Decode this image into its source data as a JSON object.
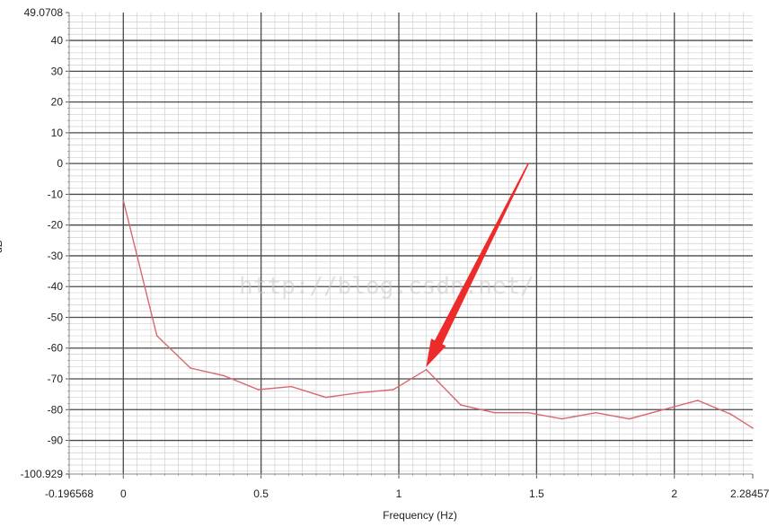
{
  "chart_data": {
    "type": "line",
    "xlabel": "Frequency (Hz)",
    "ylabel": "dB",
    "xlim": [
      -0.196568,
      2.28457
    ],
    "ylim": [
      -100.929,
      49.0708
    ],
    "x_tick_values": [
      0,
      0.5,
      1,
      1.5,
      2
    ],
    "x_tick_labels": [
      "-0.196568",
      "0",
      "0.5",
      "1",
      "1.5",
      "2",
      "2.28457"
    ],
    "y_tick_values": [
      40,
      30,
      20,
      10,
      0,
      -10,
      -20,
      -30,
      -40,
      -50,
      -60,
      -70,
      -80,
      -90
    ],
    "y_tick_labels": [
      "49.0708",
      "40",
      "30",
      "20",
      "10",
      "0",
      "-10",
      "-20",
      "-30",
      "-40",
      "-50",
      "-60",
      "-70",
      "-80",
      "-90",
      "-100.929"
    ],
    "grid": true,
    "series": [
      {
        "color": "#d9686e",
        "x": [
          0,
          0.122,
          0.244,
          0.366,
          0.49,
          0.61,
          0.735,
          0.858,
          0.98,
          1.1,
          1.225,
          1.347,
          1.47,
          1.592,
          1.715,
          1.837,
          1.96,
          2.085,
          2.205,
          2.28457
        ],
        "y": [
          -12,
          -56,
          -66.5,
          -69,
          -73.5,
          -72.5,
          -76,
          -74.5,
          -73.5,
          -67,
          -78.5,
          -81,
          -81,
          -83,
          -81,
          -83,
          -80,
          -77,
          -81.5,
          -86
        ]
      }
    ],
    "annotations": {
      "arrow": {
        "color": "#ee2b2b",
        "from": [
          1.47,
          0
        ],
        "to": [
          1.1,
          -66
        ]
      },
      "watermark": "http://blog.csdn.net/"
    }
  }
}
